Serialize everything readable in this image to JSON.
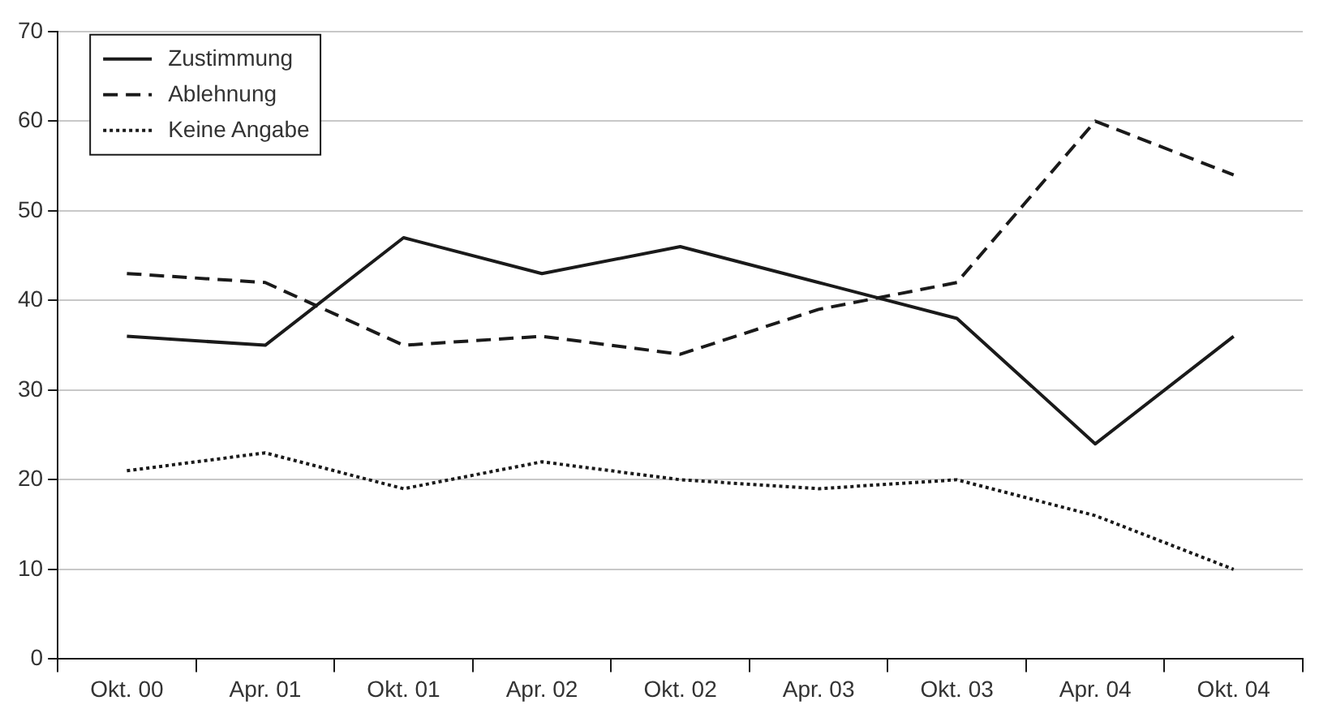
{
  "chart_data": {
    "type": "line",
    "categories": [
      "Okt. 00",
      "Apr. 01",
      "Okt. 01",
      "Apr. 02",
      "Okt. 02",
      "Apr. 03",
      "Okt. 03",
      "Apr. 04",
      "Okt. 04"
    ],
    "series": [
      {
        "name": "Zustimmung",
        "color": "#1a1a1a",
        "line_style": "solid",
        "values": [
          36,
          35,
          47,
          43,
          46,
          42,
          38,
          24,
          36
        ]
      },
      {
        "name": "Ablehnung",
        "color": "#1a1a1a",
        "line_style": "dashed",
        "values": [
          43,
          42,
          35,
          36,
          34,
          39,
          42,
          60,
          54
        ]
      },
      {
        "name": "Keine Angabe",
        "color": "#1a1a1a",
        "line_style": "dotted",
        "values": [
          21,
          23,
          19,
          22,
          20,
          19,
          20,
          16,
          10
        ]
      }
    ],
    "ylim": [
      0,
      70
    ],
    "yticks": [
      0,
      10,
      20,
      30,
      40,
      50,
      60,
      70
    ],
    "grid": "y",
    "legend": "top left",
    "marker": "none"
  }
}
